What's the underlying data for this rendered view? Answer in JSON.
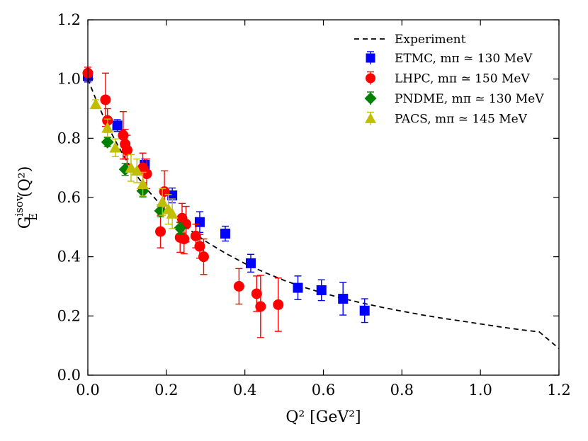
{
  "chart_data": {
    "type": "scatter",
    "title": "",
    "xlabel": "Q² [GeV²]",
    "ylabel": "G",
    "ylabel_sub": "E",
    "ylabel_sup": "isov",
    "ylabel_tail": "(Q²)",
    "xlim": [
      0.0,
      1.2
    ],
    "ylim": [
      0.0,
      1.2
    ],
    "xticks": [
      0.0,
      0.2,
      0.4,
      0.6,
      0.8,
      1.0,
      1.2
    ],
    "yticks": [
      0.0,
      0.2,
      0.4,
      0.6,
      0.8,
      1.0,
      1.2
    ],
    "xtick_labels": [
      "0.0",
      "0.2",
      "0.4",
      "0.6",
      "0.8",
      "1.0",
      "1.2"
    ],
    "ytick_labels": [
      "0.0",
      "0.2",
      "0.4",
      "0.6",
      "0.8",
      "1.0",
      "1.2"
    ],
    "grid": false,
    "legend_position": "top-right",
    "curve": {
      "name": "Experiment",
      "style": "dashed",
      "color": "#000000",
      "x": [
        0.0,
        0.02,
        0.04,
        0.06,
        0.08,
        0.1,
        0.125,
        0.15,
        0.175,
        0.2,
        0.25,
        0.3,
        0.35,
        0.4,
        0.45,
        0.5,
        0.55,
        0.6,
        0.65,
        0.7,
        0.75,
        0.8,
        0.85,
        0.9,
        0.95,
        1.0,
        1.05,
        1.1,
        1.15,
        1.2
      ],
      "y": [
        1.0,
        0.933,
        0.872,
        0.817,
        0.767,
        0.722,
        0.673,
        0.629,
        0.591,
        0.557,
        0.5,
        0.452,
        0.412,
        0.377,
        0.347,
        0.32,
        0.297,
        0.277,
        0.259,
        0.243,
        0.229,
        0.216,
        0.204,
        0.193,
        0.183,
        0.173,
        0.163,
        0.154,
        0.146,
        0.09
      ]
    },
    "series": [
      {
        "name": "ETMC",
        "legend_label": "ETMC, mπ ≃ 130 MeV",
        "marker": "square",
        "color": "#0000ff",
        "points": [
          {
            "x": 0.0,
            "y": 1.01,
            "err": 0.02
          },
          {
            "x": 0.075,
            "y": 0.843,
            "err": 0.02
          },
          {
            "x": 0.145,
            "y": 0.71,
            "err": 0.02
          },
          {
            "x": 0.215,
            "y": 0.607,
            "err": 0.025
          },
          {
            "x": 0.285,
            "y": 0.517,
            "err": 0.035
          },
          {
            "x": 0.35,
            "y": 0.478,
            "err": 0.025
          },
          {
            "x": 0.415,
            "y": 0.378,
            "err": 0.03
          },
          {
            "x": 0.535,
            "y": 0.295,
            "err": 0.04
          },
          {
            "x": 0.595,
            "y": 0.287,
            "err": 0.035
          },
          {
            "x": 0.65,
            "y": 0.258,
            "err": 0.055
          },
          {
            "x": 0.705,
            "y": 0.218,
            "err": 0.04
          }
        ]
      },
      {
        "name": "LHPC",
        "legend_label": "LHPC, mπ ≃ 150 MeV",
        "marker": "circle",
        "color": "#ff0000",
        "points": [
          {
            "x": 0.0,
            "y": 1.02,
            "err": 0.02
          },
          {
            "x": 0.045,
            "y": 0.93,
            "err": 0.09
          },
          {
            "x": 0.05,
            "y": 0.86,
            "err": 0.04
          },
          {
            "x": 0.09,
            "y": 0.81,
            "err": 0.08
          },
          {
            "x": 0.095,
            "y": 0.78,
            "err": 0.05
          },
          {
            "x": 0.1,
            "y": 0.76,
            "err": 0.05
          },
          {
            "x": 0.14,
            "y": 0.7,
            "err": 0.05
          },
          {
            "x": 0.15,
            "y": 0.68,
            "err": 0.05
          },
          {
            "x": 0.185,
            "y": 0.485,
            "err": 0.055
          },
          {
            "x": 0.195,
            "y": 0.62,
            "err": 0.07
          },
          {
            "x": 0.235,
            "y": 0.465,
            "err": 0.05
          },
          {
            "x": 0.24,
            "y": 0.53,
            "err": 0.05
          },
          {
            "x": 0.245,
            "y": 0.46,
            "err": 0.05
          },
          {
            "x": 0.25,
            "y": 0.51,
            "err": 0.06
          },
          {
            "x": 0.275,
            "y": 0.47,
            "err": 0.04
          },
          {
            "x": 0.285,
            "y": 0.435,
            "err": 0.04
          },
          {
            "x": 0.295,
            "y": 0.4,
            "err": 0.06
          },
          {
            "x": 0.385,
            "y": 0.3,
            "err": 0.06
          },
          {
            "x": 0.43,
            "y": 0.275,
            "err": 0.06
          },
          {
            "x": 0.44,
            "y": 0.232,
            "err": 0.105
          },
          {
            "x": 0.485,
            "y": 0.238,
            "err": 0.09
          }
        ]
      },
      {
        "name": "PNDME",
        "legend_label": "PNDME, mπ ≃ 130 MeV",
        "marker": "diamond",
        "color": "#008000",
        "points": [
          {
            "x": 0.05,
            "y": 0.787,
            "err": 0.015
          },
          {
            "x": 0.095,
            "y": 0.695,
            "err": 0.02
          },
          {
            "x": 0.14,
            "y": 0.622,
            "err": 0.02
          },
          {
            "x": 0.185,
            "y": 0.555,
            "err": 0.02
          },
          {
            "x": 0.235,
            "y": 0.497,
            "err": 0.02
          }
        ]
      },
      {
        "name": "PACS",
        "legend_label": "PACS, mπ ≃ 145 MeV",
        "marker": "triangle",
        "color": "#bfbf00",
        "points": [
          {
            "x": 0.02,
            "y": 0.915,
            "err": 0.015
          },
          {
            "x": 0.05,
            "y": 0.835,
            "err": 0.03
          },
          {
            "x": 0.07,
            "y": 0.768,
            "err": 0.03
          },
          {
            "x": 0.11,
            "y": 0.7,
            "err": 0.045
          },
          {
            "x": 0.125,
            "y": 0.69,
            "err": 0.04
          },
          {
            "x": 0.14,
            "y": 0.645,
            "err": 0.04
          },
          {
            "x": 0.19,
            "y": 0.585,
            "err": 0.045
          },
          {
            "x": 0.205,
            "y": 0.56,
            "err": 0.05
          },
          {
            "x": 0.215,
            "y": 0.545,
            "err": 0.05
          }
        ]
      }
    ]
  }
}
